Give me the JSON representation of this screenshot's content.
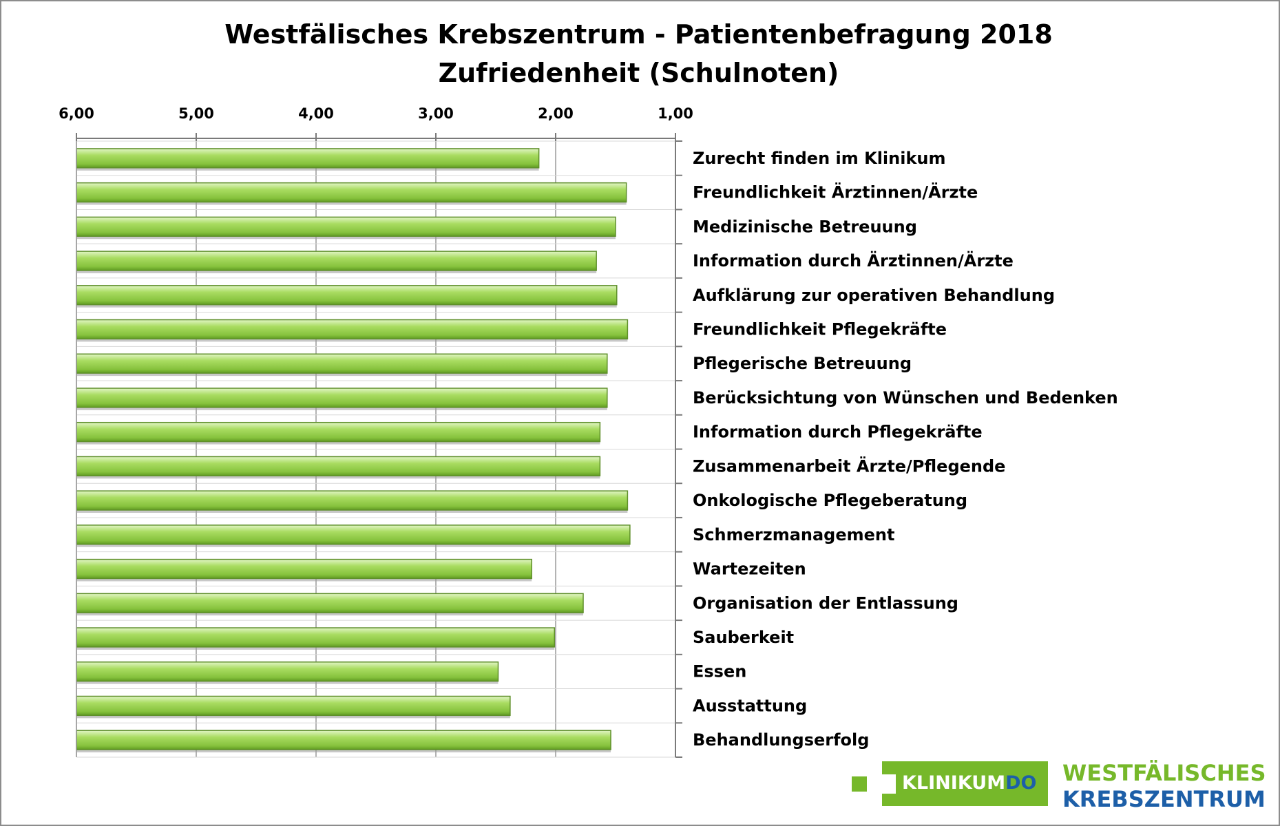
{
  "chart_data": {
    "type": "bar",
    "orientation": "horizontal",
    "title": "Westfälisches Krebszentrum - Patientenbefragung 2018",
    "subtitle": "Zufriedenheit (Schulnoten)",
    "x_axis": {
      "reversed": true,
      "range": [
        1.0,
        6.0
      ],
      "ticks": [
        6,
        5,
        4,
        3,
        2,
        1
      ],
      "tick_labels": [
        "6,00",
        "5,00",
        "4,00",
        "3,00",
        "2,00",
        "1,00"
      ],
      "position": "top"
    },
    "grid": true,
    "categories": [
      "Zurecht finden im Klinikum",
      "Freundlichkeit Ärztinnen/Ärzte",
      "Medizinische Betreuung",
      "Information durch Ärztinnen/Ärzte",
      "Aufklärung zur operativen Behandlung",
      "Freundlichkeit Pflegekräfte",
      "Pflegerische Betreuung",
      "Berücksichtung von Wünschen und Bedenken",
      "Information durch Pflegekräfte",
      "Zusammenarbeit Ärzte/Pflegende",
      "Onkologische Pflegeberatung",
      "Schmerzmanagement",
      "Wartezeiten",
      "Organisation der Entlassung",
      "Sauberkeit",
      "Essen",
      "Ausstattung",
      "Behandlungserfolg"
    ],
    "values": [
      2.14,
      1.41,
      1.5,
      1.66,
      1.49,
      1.4,
      1.57,
      1.57,
      1.63,
      1.63,
      1.4,
      1.38,
      2.2,
      1.77,
      2.01,
      2.48,
      2.38,
      1.54
    ],
    "bar_color": "#92d050"
  },
  "logos": {
    "klinikum_text": "KLINIKUM",
    "klinikum_do": "DO",
    "line1": "WESTFÄLISCHES",
    "line2": "KREBSZENTRUM",
    "green": "#76b82a",
    "blue": "#1d5fa8"
  }
}
